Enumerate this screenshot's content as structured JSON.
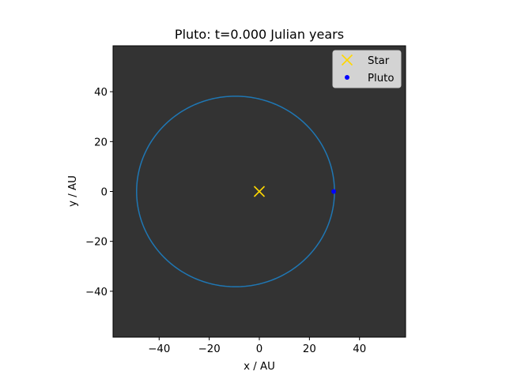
{
  "chart_data": {
    "type": "scatter",
    "title": "Pluto: t=0.000 Julian years",
    "xlabel": "x / AU",
    "ylabel": "y / AU",
    "xlim": [
      -58.4,
      58.4
    ],
    "ylim": [
      -58.4,
      58.4
    ],
    "xticks": [
      -40,
      -20,
      0,
      20,
      40
    ],
    "yticks": [
      -40,
      -20,
      0,
      20,
      40
    ],
    "xtick_labels": [
      "−40",
      "−20",
      "0",
      "20",
      "40"
    ],
    "ytick_labels": [
      "−40",
      "−20",
      "0",
      "20",
      "40"
    ],
    "grid": false,
    "legend_position": "top-right",
    "colors": {
      "axes_background": "#333333",
      "orbit": "#1f77b4",
      "star": "#ffd700",
      "pluto": "#0000ff",
      "legend_background": "#d3d3d3"
    },
    "orbit": {
      "center": [
        -9.5,
        0.0
      ],
      "semi_major_axis": 39.5,
      "semi_minor_axis": 38.2
    },
    "series": [
      {
        "name": "Star",
        "marker": "x",
        "x": [
          0.0
        ],
        "y": [
          0.0
        ]
      },
      {
        "name": "Pluto",
        "marker": "o",
        "x": [
          29.7
        ],
        "y": [
          0.0
        ]
      }
    ]
  }
}
